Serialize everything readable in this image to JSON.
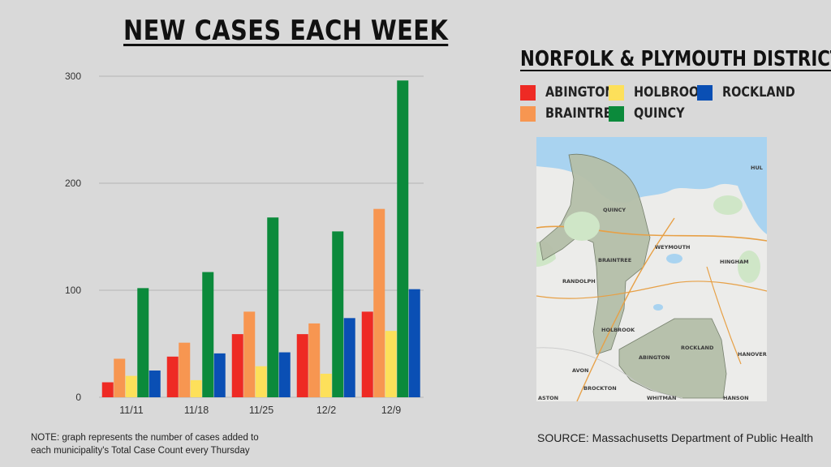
{
  "title": "NEW CASES EACH WEEK",
  "district_title": "NORFOLK & PLYMOUTH DISTRICT",
  "note_line1": "NOTE: graph represents the number of cases added to",
  "note_line2": "each municipality's Total Case Count every Thursday",
  "source": "SOURCE: Massachusetts Department of Public Health",
  "map": {
    "labels": {
      "quincy": "QUINCY",
      "braintree": "BRAINTREE",
      "weymouth": "WEYMOUTH",
      "hingham": "HINGHAM",
      "randolph": "RANDOLPH",
      "holbrook": "HOLBROOK",
      "avon": "AVON",
      "abington": "ABINGTON",
      "rockland": "ROCKLAND",
      "hanover": "HANOVER",
      "brockton": "BROCKTON",
      "whitman": "WHITMAN",
      "hanson": "HANSON",
      "easton": "ASTON",
      "hull": "HUL"
    }
  },
  "chart_data": {
    "type": "bar",
    "title": "NEW CASES EACH WEEK",
    "categories": [
      "11/11",
      "11/18",
      "11/25",
      "12/2",
      "12/9"
    ],
    "yticks": [
      0,
      100,
      200,
      300
    ],
    "ylim": [
      0,
      300
    ],
    "grid": true,
    "legend_placement": "right",
    "series": [
      {
        "name": "ABINGTON",
        "color": "#ee2a24",
        "values": [
          14,
          38,
          59,
          59,
          80
        ]
      },
      {
        "name": "BRAINTREE",
        "color": "#f79651",
        "values": [
          36,
          51,
          80,
          69,
          176
        ]
      },
      {
        "name": "HOLBROOK",
        "color": "#fde05a",
        "values": [
          20,
          16,
          29,
          22,
          62
        ]
      },
      {
        "name": "QUINCY",
        "color": "#0b8a3b",
        "values": [
          102,
          117,
          168,
          155,
          296
        ]
      },
      {
        "name": "ROCKLAND",
        "color": "#0a4fb4",
        "values": [
          25,
          41,
          42,
          74,
          101
        ]
      }
    ]
  }
}
